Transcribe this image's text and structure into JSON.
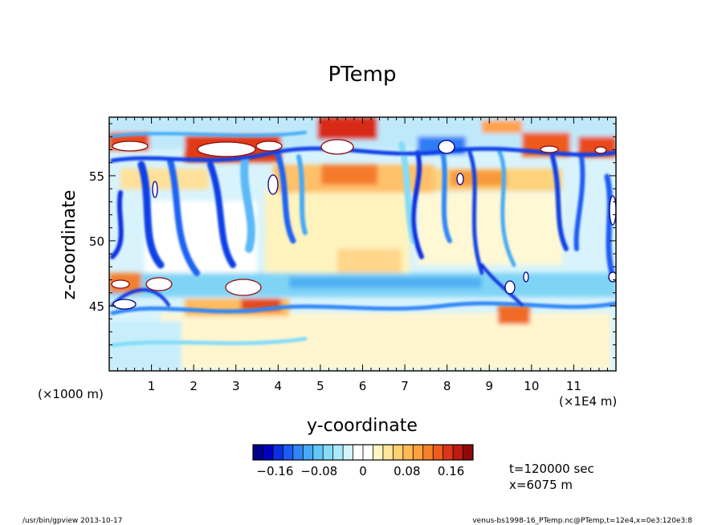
{
  "chart_data": {
    "type": "heatmap",
    "title": "PTemp",
    "xlabel": "y-coordinate",
    "ylabel": "z-coordinate",
    "x_unit_left": "(×1000 m)",
    "x_unit_right": "(×1E4 m)",
    "xlim": [
      0,
      12
    ],
    "ylim": [
      40,
      59.5
    ],
    "x_ticks": [
      "1",
      "2",
      "3",
      "4",
      "5",
      "6",
      "7",
      "8",
      "9",
      "10",
      "11"
    ],
    "y_ticks": [
      "45",
      "50",
      "55"
    ],
    "colorbar": {
      "ticks": [
        "−0.16",
        "−0.08",
        "0",
        "0.08",
        "0.16"
      ],
      "range": [
        -0.2,
        0.2
      ],
      "colors": [
        "#00008a",
        "#0000c0",
        "#0b2fe0",
        "#1d5cf2",
        "#2f86f7",
        "#45aaf7",
        "#63c7f7",
        "#86dcf8",
        "#abeafa",
        "#d2f5fc",
        "#ffffff",
        "#ffffff",
        "#fff6c4",
        "#ffe69a",
        "#ffd173",
        "#ffba55",
        "#ffa13c",
        "#f8802b",
        "#ee5c1f",
        "#db3617",
        "#bf1a12",
        "#8e0a0a"
      ]
    },
    "info_time": "t=120000 sec",
    "info_pos": "x=6075 m"
  },
  "footer": {
    "left": "/usr/bin/gpview  2013-10-17",
    "right": "venus-bs1998-16_PTemp.nc@PTemp,t=12e4,x=0e3:120e3:8"
  }
}
